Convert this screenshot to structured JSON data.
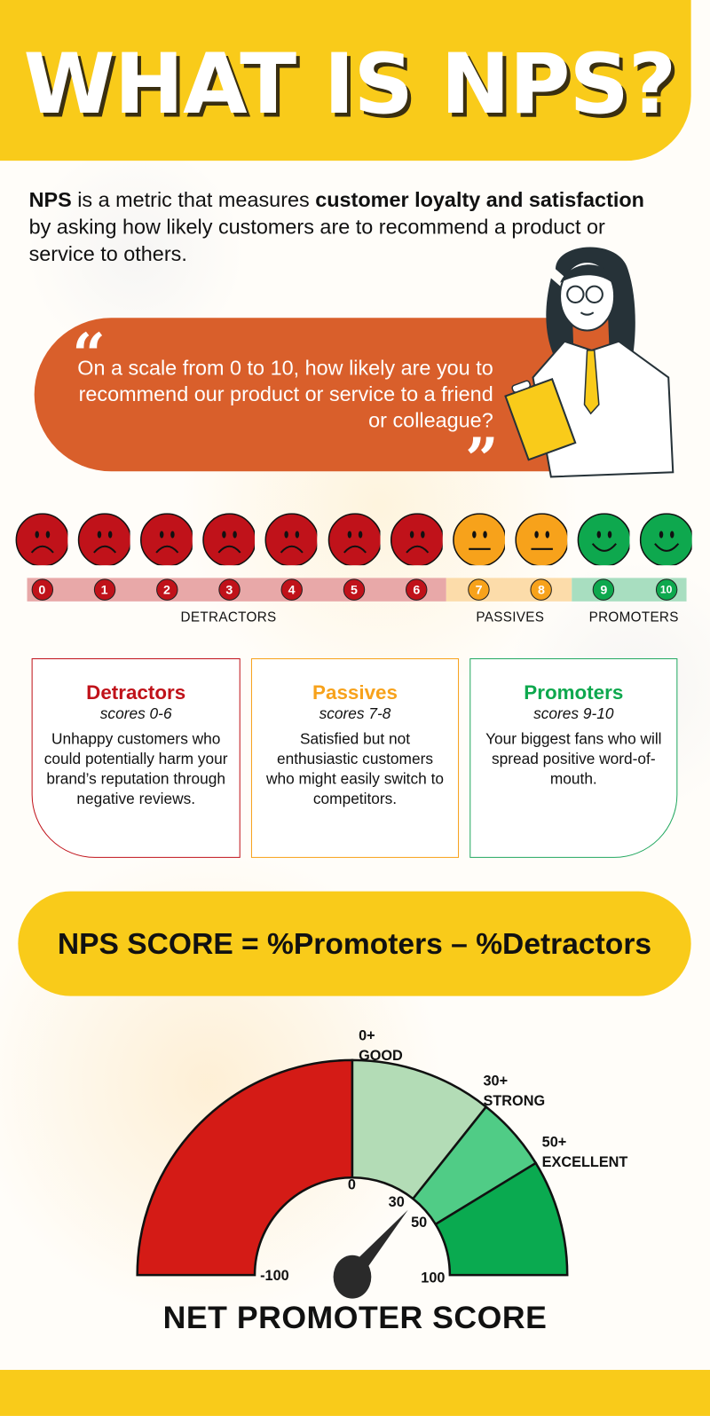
{
  "header": {
    "title": "WHAT IS NPS?"
  },
  "intro": {
    "parts": [
      {
        "text": "NPS",
        "bold": true
      },
      {
        "text": " is a metric that measures ",
        "bold": false
      },
      {
        "text": "customer loyalty and satisfaction",
        "bold": true
      },
      {
        "text": " by asking how likely customers are to recommend a product or service to others.",
        "bold": false
      }
    ]
  },
  "quote": {
    "open_mark": "“",
    "text": "On a scale from 0 to 10, how likely are you to recommend our product or service to a friend or colleague?",
    "close_mark": "”"
  },
  "colors": {
    "yellow": "#f9cb1a",
    "orange_pill": "#d95f2b",
    "detractor": "#c0121a",
    "passive": "#f7a21b",
    "promoter": "#0ea84e",
    "detractor_band": "#e8a8a8",
    "passive_band": "#fcdcaa",
    "promoter_band": "#a8dec0"
  },
  "scale": {
    "scores": [
      {
        "value": "0",
        "group": "detractor",
        "face": "sad-face-icon"
      },
      {
        "value": "1",
        "group": "detractor",
        "face": "sad-face-icon"
      },
      {
        "value": "2",
        "group": "detractor",
        "face": "sad-face-icon"
      },
      {
        "value": "3",
        "group": "detractor",
        "face": "sad-face-icon"
      },
      {
        "value": "4",
        "group": "detractor",
        "face": "sad-face-icon"
      },
      {
        "value": "5",
        "group": "detractor",
        "face": "sad-face-icon"
      },
      {
        "value": "6",
        "group": "detractor",
        "face": "sad-face-icon"
      },
      {
        "value": "7",
        "group": "passive",
        "face": "neutral-face-icon"
      },
      {
        "value": "8",
        "group": "passive",
        "face": "neutral-face-icon"
      },
      {
        "value": "9",
        "group": "promoter",
        "face": "happy-face-icon"
      },
      {
        "value": "10",
        "group": "promoter",
        "face": "happy-face-icon"
      }
    ],
    "labels": {
      "detractors": "DETRACTORS",
      "passives": "PASSIVES",
      "promoters": "PROMOTERS"
    }
  },
  "cards": [
    {
      "title": "Detractors",
      "scores": "scores 0-6",
      "desc": "Unhappy customers who could potentially harm your brand’s reputation through negative reviews."
    },
    {
      "title": "Passives",
      "scores": "scores 7-8",
      "desc": "Satisfied but not enthusiastic customers who might easily switch to competitors."
    },
    {
      "title": "Promoters",
      "scores": "scores 9-10",
      "desc": "Your biggest fans who will spread positive word-of-mouth."
    }
  ],
  "formula": "NPS SCORE = %Promoters – %Detractors",
  "chart_data": {
    "type": "gauge",
    "title": "NET PROMOTER SCORE",
    "range": [
      -100,
      100
    ],
    "segments": [
      {
        "from": -100,
        "to": 0,
        "color": "#d41b16"
      },
      {
        "from": 0,
        "to": 30,
        "color": "#b3dcb6",
        "label_value": "0+",
        "label": "GOOD"
      },
      {
        "from": 30,
        "to": 50,
        "color": "#50cc86",
        "label_value": "30+",
        "label": "STRONG"
      },
      {
        "from": 50,
        "to": 100,
        "color": "#0aaa50",
        "label_value": "50+",
        "label": "EXCELLENT"
      }
    ],
    "tick_labels": [
      "-100",
      "0",
      "30",
      "50",
      "100"
    ],
    "needle_value": 32
  }
}
